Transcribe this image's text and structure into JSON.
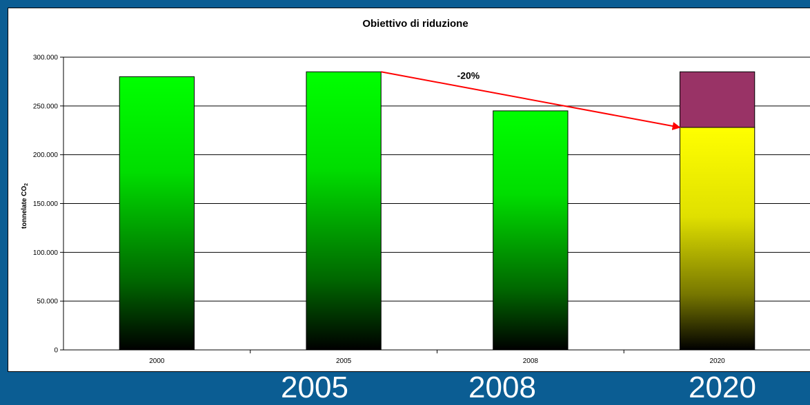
{
  "chart_data": {
    "type": "bar",
    "title": "Obiettivo di riduzione",
    "ylabel": "tonnelate CO",
    "ylabel_subscript": "2",
    "ylim": [
      0,
      300000
    ],
    "yticks": [
      {
        "value": 0,
        "label": "0"
      },
      {
        "value": 50000,
        "label": "50.000"
      },
      {
        "value": 100000,
        "label": "100.000"
      },
      {
        "value": 150000,
        "label": "150.000"
      },
      {
        "value": 200000,
        "label": "200.000"
      },
      {
        "value": 250000,
        "label": "250.000"
      },
      {
        "value": 300000,
        "label": "300.000"
      }
    ],
    "grid": true,
    "categories": [
      "2000",
      "2005",
      "2008",
      "2020"
    ],
    "series": [
      {
        "values": [
          280000,
          285000,
          245000,
          228000
        ],
        "colors": [
          "#00ff00",
          "#00ff00",
          "#00ff00",
          "#ffff00"
        ]
      },
      {
        "values": [
          0,
          0,
          0,
          57000
        ],
        "colors": [
          "#993366",
          "#993366",
          "#993366",
          "#993366"
        ]
      }
    ],
    "annotation": {
      "text": "-20%",
      "from": {
        "category": "2005",
        "value": 285000
      },
      "to": {
        "category": "2020",
        "value": 228000
      },
      "color": "#ff0000"
    }
  },
  "footer_years": [
    "2005",
    "2008",
    "2020"
  ],
  "colors": {
    "background": "#0b5d93",
    "panel": "#ffffff"
  }
}
